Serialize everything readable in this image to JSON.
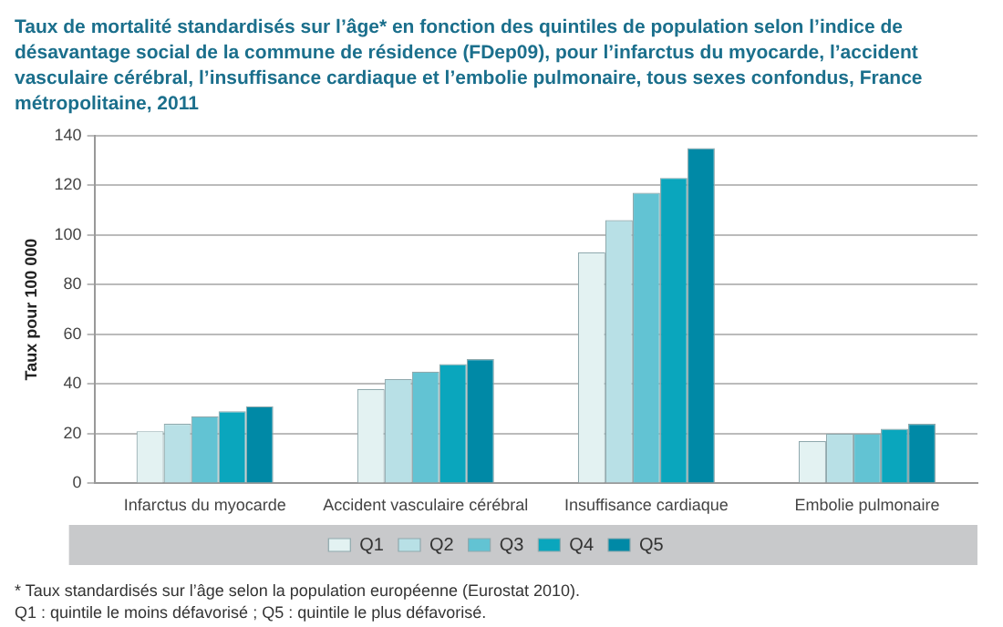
{
  "chart_data": {
    "type": "bar",
    "title": "Taux de mortalité standardisés sur l’âge* en fonction des quintiles de population selon l’indice de désavantage social de la commune de résidence (FDep09), pour l’infarctus du myocarde, l’accident vasculaire cérébral, l’insuffisance cardiaque et l’embolie pulmonaire, tous sexes confondus, France métropolitaine, 2011",
    "ylabel": "Taux pour 100 000",
    "categories": [
      "Infarctus du myocarde",
      "Accident vasculaire cérébral",
      "Insuffisance cardiaque",
      "Embolie pulmonaire"
    ],
    "series": [
      {
        "name": "Q1",
        "color": "#e3f2f2",
        "values": [
          21,
          38,
          93,
          17
        ]
      },
      {
        "name": "Q2",
        "color": "#b8e0e6",
        "values": [
          24,
          42,
          106,
          20
        ]
      },
      {
        "name": "Q3",
        "color": "#62c3d3",
        "values": [
          27,
          45,
          117,
          20
        ]
      },
      {
        "name": "Q4",
        "color": "#0aa6bd",
        "values": [
          29,
          48,
          123,
          22
        ]
      },
      {
        "name": "Q5",
        "color": "#0089a6",
        "values": [
          31,
          50,
          135,
          24
        ]
      }
    ],
    "ylim": [
      0,
      140
    ],
    "yticks": [
      0,
      20,
      40,
      60,
      80,
      100,
      120,
      140
    ],
    "grid": "y",
    "legend": "bottom",
    "annotations": [
      "* Taux standardisés sur l’âge selon la population européenne (Eurostat 2010).",
      "Q1 : quintile le moins défavorisé ; Q5 : quintile le plus défavorisé."
    ]
  }
}
